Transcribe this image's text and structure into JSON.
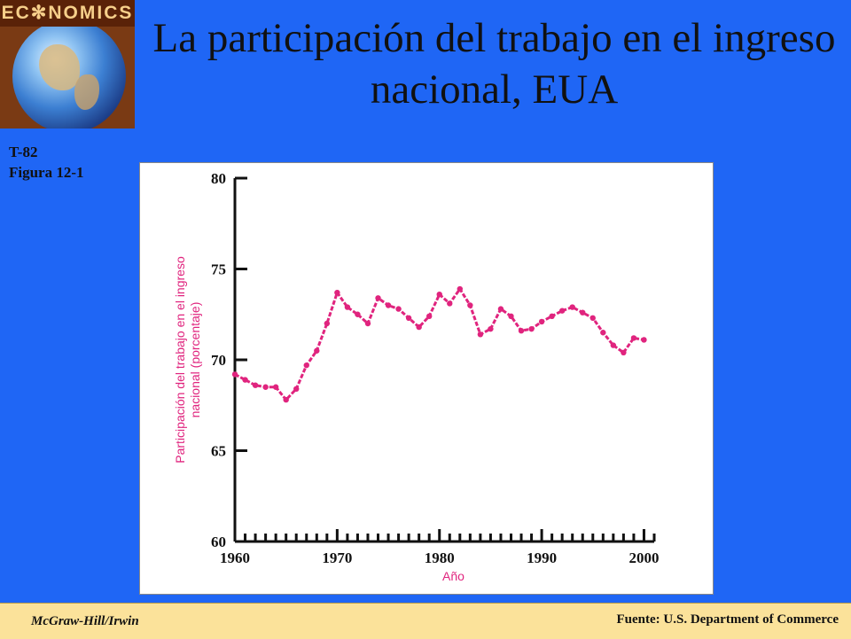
{
  "logo": {
    "text": "EC✻NOMICS"
  },
  "header": {
    "title": "La participación del trabajo en el ingreso nacional, EUA"
  },
  "figure_label": {
    "line1": "T-82",
    "line2": "Figura 12-1"
  },
  "footer": {
    "publisher": "McGraw-Hill/Irwin",
    "source": "Fuente: U.S. Department of Commerce"
  },
  "colors": {
    "background": "#1f66f5",
    "series": "#e0247e",
    "axis": "#111111",
    "footer": "#fbe29a"
  },
  "chart_data": {
    "type": "line",
    "title": "",
    "xlabel": "Año",
    "ylabel": "Participación del trabajo en el ingreso nacional (porcentaje)",
    "xlim": [
      1960,
      2001
    ],
    "ylim": [
      60,
      80
    ],
    "xticks": [
      1960,
      1970,
      1980,
      1990,
      2000
    ],
    "yticks": [
      60,
      65,
      70,
      75,
      80
    ],
    "grid": false,
    "series": [
      {
        "x": [
          1960,
          1961,
          1962,
          1963,
          1964,
          1965,
          1966,
          1967,
          1968,
          1969,
          1970,
          1971,
          1972,
          1973,
          1974,
          1975,
          1976,
          1977,
          1978,
          1979,
          1980,
          1981,
          1982,
          1983,
          1984,
          1985,
          1986,
          1987,
          1988,
          1989,
          1990,
          1991,
          1992,
          1993,
          1994,
          1995,
          1996,
          1997,
          1998,
          1999,
          2000
        ],
        "values": [
          69.2,
          68.9,
          68.6,
          68.5,
          68.5,
          67.8,
          68.4,
          69.7,
          70.5,
          72.0,
          73.7,
          72.9,
          72.5,
          72.0,
          73.4,
          73.0,
          72.8,
          72.3,
          71.8,
          72.4,
          73.6,
          73.1,
          73.9,
          73.0,
          71.4,
          71.7,
          72.8,
          72.4,
          71.6,
          71.7,
          72.1,
          72.4,
          72.7,
          72.9,
          72.6,
          72.3,
          71.5,
          70.8,
          70.4,
          71.2,
          71.1
        ]
      }
    ]
  }
}
